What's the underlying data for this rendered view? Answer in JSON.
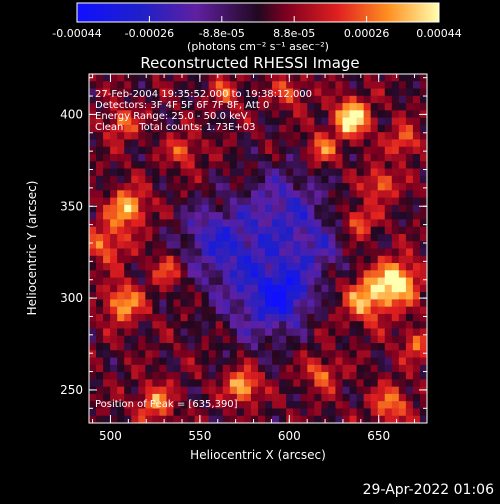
{
  "chart_data": {
    "type": "heatmap",
    "title": "Reconstructed RHESSI Image",
    "xlabel": "Heliocentric X (arcsec)",
    "ylabel": "Heliocentric Y (arcsec)",
    "xlim": [
      488,
      677
    ],
    "ylim": [
      232,
      422
    ],
    "x_ticks": [
      500,
      550,
      600,
      650
    ],
    "y_ticks": [
      250,
      300,
      350,
      400
    ],
    "annotation_lines": [
      "27-Feb-2004 19:35:52.000 to 19:38:12.000",
      "Detectors: 3F 4F 5F 6F 7F 8F, Att 0",
      "Energy Range: 25.0 - 50.0 keV",
      "Clean     Total counts: 1.73E+03"
    ],
    "peak_label": "Position of Peak = [635,390]",
    "colorbar": {
      "tick_labels": [
        "-0.00044",
        "-0.00026",
        "-8.8e-05",
        "8.8e-05",
        "0.00026",
        "0.00044"
      ],
      "unit_label": "(photons cm⁻² s⁻¹ asec⁻²)",
      "range": [
        -0.00044,
        0.00044
      ]
    },
    "peak": {
      "x": 635,
      "y": 390
    },
    "blobs": [
      {
        "x": 635,
        "y": 398,
        "amp": 1.0,
        "s": 7
      },
      {
        "x": 661,
        "y": 309,
        "amp": 0.95,
        "s": 8
      },
      {
        "x": 644,
        "y": 300,
        "amp": 0.75,
        "s": 9
      },
      {
        "x": 510,
        "y": 349,
        "amp": 0.8,
        "s": 7
      },
      {
        "x": 507,
        "y": 297,
        "amp": 0.75,
        "s": 7
      },
      {
        "x": 498,
        "y": 330,
        "amp": 0.55,
        "s": 8
      },
      {
        "x": 506,
        "y": 395,
        "amp": 0.55,
        "s": 6
      },
      {
        "x": 541,
        "y": 380,
        "amp": 0.5,
        "s": 6
      },
      {
        "x": 618,
        "y": 381,
        "amp": 0.55,
        "s": 6
      },
      {
        "x": 651,
        "y": 362,
        "amp": 0.6,
        "s": 6
      },
      {
        "x": 664,
        "y": 385,
        "amp": 0.55,
        "s": 6
      },
      {
        "x": 574,
        "y": 252,
        "amp": 0.85,
        "s": 6
      },
      {
        "x": 525,
        "y": 243,
        "amp": 0.6,
        "s": 7
      },
      {
        "x": 657,
        "y": 242,
        "amp": 0.6,
        "s": 7
      },
      {
        "x": 618,
        "y": 259,
        "amp": 0.55,
        "s": 6
      },
      {
        "x": 639,
        "y": 342,
        "amp": 0.55,
        "s": 6
      },
      {
        "x": 532,
        "y": 315,
        "amp": 0.45,
        "s": 6
      },
      {
        "x": 600,
        "y": 412,
        "amp": 0.45,
        "s": 6
      },
      {
        "x": 565,
        "y": 412,
        "amp": 0.4,
        "s": 6
      },
      {
        "x": 671,
        "y": 275,
        "amp": 0.5,
        "s": 6
      },
      {
        "x": 598,
        "y": 350,
        "amp": -0.5,
        "s": 16
      },
      {
        "x": 575,
        "y": 320,
        "amp": -0.55,
        "s": 18
      },
      {
        "x": 598,
        "y": 302,
        "amp": -0.7,
        "s": 10
      },
      {
        "x": 555,
        "y": 335,
        "amp": -0.4,
        "s": 12
      },
      {
        "x": 615,
        "y": 325,
        "amp": -0.4,
        "s": 12
      },
      {
        "x": 585,
        "y": 290,
        "amp": -0.35,
        "s": 14
      }
    ]
  },
  "footer": {
    "date": "29-Apr-2022 01:06"
  }
}
